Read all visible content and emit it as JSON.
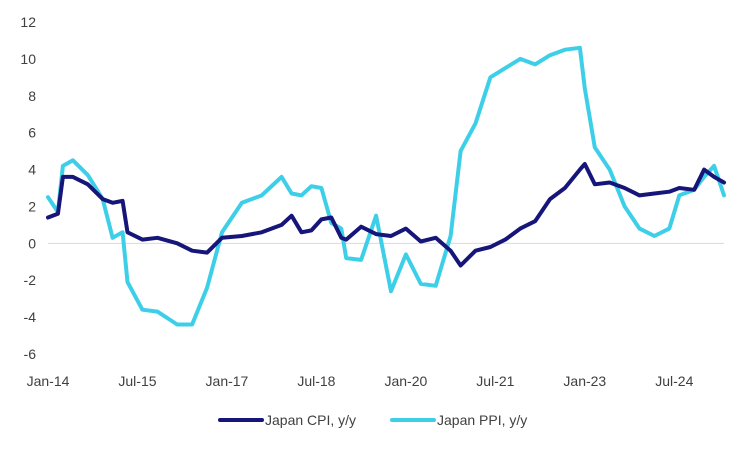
{
  "chart_data": {
    "type": "line",
    "title": "",
    "xlabel": "",
    "ylabel": "",
    "ylim": [
      -6,
      12
    ],
    "yticks": [
      -6,
      -4,
      -2,
      0,
      2,
      4,
      6,
      8,
      10,
      12
    ],
    "xticks": [
      "Jan-14",
      "Jul-15",
      "Jan-17",
      "Jul-18",
      "Jan-20",
      "Jul-21",
      "Jan-23",
      "Jul-24"
    ],
    "xtick_dates": [
      "2014-01",
      "2015-07",
      "2017-01",
      "2018-07",
      "2020-01",
      "2021-07",
      "2023-01",
      "2024-07"
    ],
    "x_range": [
      "2014-01",
      "2025-05"
    ],
    "grid": false,
    "legend_position": "bottom",
    "series": [
      {
        "name": "Japan CPI, y/y",
        "color": "#15157a",
        "x": [
          "2014-01",
          "2014-03",
          "2014-04",
          "2014-06",
          "2014-09",
          "2014-12",
          "2015-02",
          "2015-04",
          "2015-05",
          "2015-08",
          "2015-11",
          "2016-03",
          "2016-06",
          "2016-09",
          "2016-12",
          "2017-04",
          "2017-08",
          "2017-12",
          "2018-02",
          "2018-04",
          "2018-06",
          "2018-08",
          "2018-10",
          "2018-12",
          "2019-01",
          "2019-04",
          "2019-07",
          "2019-10",
          "2020-01",
          "2020-04",
          "2020-07",
          "2020-10",
          "2020-12",
          "2021-03",
          "2021-06",
          "2021-09",
          "2021-12",
          "2022-03",
          "2022-06",
          "2022-09",
          "2022-12",
          "2023-01",
          "2023-03",
          "2023-06",
          "2023-09",
          "2023-12",
          "2024-03",
          "2024-06",
          "2024-08",
          "2024-11",
          "2025-01",
          "2025-03",
          "2025-05"
        ],
        "values": [
          1.4,
          1.6,
          3.6,
          3.6,
          3.2,
          2.4,
          2.2,
          2.3,
          0.6,
          0.2,
          0.3,
          0.0,
          -0.4,
          -0.5,
          0.3,
          0.4,
          0.6,
          1.0,
          1.5,
          0.6,
          0.7,
          1.3,
          1.4,
          0.3,
          0.2,
          0.9,
          0.5,
          0.4,
          0.8,
          0.1,
          0.3,
          -0.4,
          -1.2,
          -0.4,
          -0.2,
          0.2,
          0.8,
          1.2,
          2.4,
          3.0,
          4.0,
          4.3,
          3.2,
          3.3,
          3.0,
          2.6,
          2.7,
          2.8,
          3.0,
          2.9,
          4.0,
          3.6,
          3.3
        ]
      },
      {
        "name": "Japan PPI, y/y",
        "color": "#3ecfe8",
        "x": [
          "2014-01",
          "2014-03",
          "2014-04",
          "2014-06",
          "2014-09",
          "2014-12",
          "2015-02",
          "2015-04",
          "2015-05",
          "2015-08",
          "2015-11",
          "2016-03",
          "2016-06",
          "2016-09",
          "2016-12",
          "2017-04",
          "2017-08",
          "2017-12",
          "2018-02",
          "2018-04",
          "2018-06",
          "2018-08",
          "2018-10",
          "2018-12",
          "2019-01",
          "2019-04",
          "2019-07",
          "2019-10",
          "2020-01",
          "2020-04",
          "2020-07",
          "2020-10",
          "2020-12",
          "2021-03",
          "2021-06",
          "2021-09",
          "2021-12",
          "2022-03",
          "2022-06",
          "2022-09",
          "2022-12",
          "2023-01",
          "2023-03",
          "2023-06",
          "2023-09",
          "2023-12",
          "2024-03",
          "2024-06",
          "2024-08",
          "2024-11",
          "2025-01",
          "2025-03",
          "2025-05"
        ],
        "values": [
          2.5,
          1.7,
          4.2,
          4.5,
          3.7,
          2.4,
          0.3,
          0.6,
          -2.1,
          -3.6,
          -3.7,
          -4.4,
          -4.4,
          -2.4,
          0.6,
          2.2,
          2.6,
          3.6,
          2.7,
          2.6,
          3.1,
          3.0,
          1.1,
          0.8,
          -0.8,
          -0.9,
          1.5,
          -2.6,
          -0.6,
          -2.2,
          -2.3,
          0.4,
          5.0,
          6.5,
          9.0,
          9.5,
          10.0,
          9.7,
          10.2,
          10.5,
          10.6,
          8.4,
          5.2,
          4.0,
          2.0,
          0.8,
          0.4,
          0.8,
          2.6,
          2.9,
          3.6,
          4.2,
          2.6
        ]
      }
    ]
  }
}
